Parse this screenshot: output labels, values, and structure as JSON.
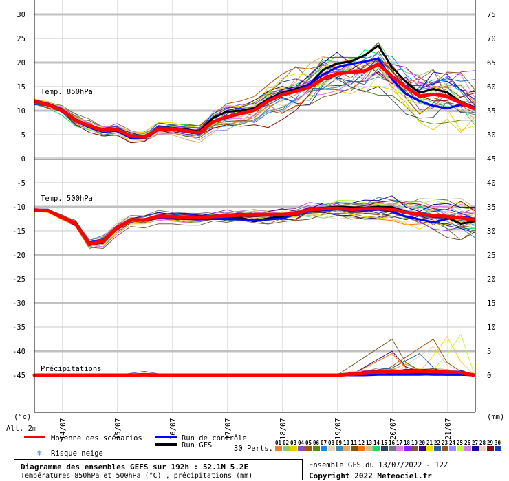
{
  "chart_data": {
    "type": "line",
    "title": "Diagramme des ensembles GEFS sur 192h : 52.1N 5.2E",
    "subtitle": "Températures 850hPa et 500hPa (°C) , précipitations (mm)",
    "run_info": "Ensemble GFS du 13/07/2022 - 12Z",
    "copyright": "Copyright 2022 Meteociel.fr",
    "left_axis": {
      "unit": "(°c)",
      "ticks": [
        "30",
        "25",
        "20",
        "15",
        "10",
        "5",
        "0",
        "-5",
        "-10",
        "-15",
        "-20",
        "-25",
        "-30",
        "-35",
        "-40",
        "-45"
      ],
      "range": [
        -45,
        30
      ]
    },
    "right_axis": {
      "unit": "(mm)",
      "ticks": [
        "75",
        "70",
        "65",
        "60",
        "55",
        "50",
        "45",
        "40",
        "35",
        "30",
        "25",
        "20",
        "15",
        "10",
        "5",
        "0"
      ]
    },
    "altitude_label": "Alt. 2m",
    "x_dates": [
      "14/07",
      "15/07",
      "16/07",
      "17/07",
      "18/07",
      "19/07",
      "20/07",
      "21/07"
    ],
    "time_step_hours": 6,
    "panel_labels": {
      "t850": "Temp. 850hPa",
      "t500": "Temp. 500hPa",
      "precip": "Précipitations"
    },
    "t850": {
      "mean": [
        11.9,
        11.2,
        10.1,
        8.0,
        6.8,
        5.9,
        6.1,
        4.7,
        4.5,
        6.2,
        6.2,
        5.8,
        5.4,
        7.7,
        8.7,
        9.4,
        10.1,
        12.0,
        13.3,
        14.0,
        14.9,
        16.6,
        17.7,
        18.0,
        18.2,
        19.7,
        17.1,
        14.9,
        13.0,
        13.4,
        13.0,
        11.6,
        10.4
      ],
      "control": [
        12.0,
        11.3,
        10.0,
        7.8,
        6.5,
        5.6,
        5.8,
        4.3,
        4.2,
        6.0,
        6.0,
        5.6,
        5.2,
        7.6,
        8.8,
        9.6,
        10.3,
        12.3,
        13.5,
        14.2,
        15.5,
        17.5,
        19.0,
        19.7,
        20.2,
        20.8,
        16.5,
        13.5,
        12.0,
        11.0,
        10.5,
        11.2,
        10.8
      ],
      "gfs": [
        12.1,
        11.4,
        10.3,
        8.2,
        6.9,
        6.0,
        6.2,
        4.8,
        4.6,
        6.4,
        6.4,
        6.1,
        5.7,
        8.5,
        9.8,
        10.0,
        10.5,
        12.5,
        13.7,
        14.5,
        15.5,
        18.5,
        19.8,
        20.2,
        21.5,
        23.5,
        19.0,
        16.0,
        13.7,
        14.5,
        13.8,
        11.8,
        10.7
      ],
      "spread": [
        0.4,
        0.5,
        0.6,
        0.8,
        0.9,
        0.9,
        0.9,
        0.8,
        0.8,
        0.8,
        0.9,
        1.0,
        1.1,
        1.3,
        1.5,
        1.6,
        1.8,
        2.2,
        2.5,
        2.6,
        2.7,
        2.8,
        2.8,
        2.9,
        3.0,
        3.0,
        3.0,
        3.2,
        3.3,
        3.4,
        3.5,
        3.6,
        3.6
      ]
    },
    "t500": {
      "mean": [
        -10.7,
        -10.8,
        -12.2,
        -13.4,
        -17.7,
        -17.2,
        -14.4,
        -12.7,
        -12.7,
        -12.0,
        -12.0,
        -12.2,
        -12.2,
        -12.0,
        -11.9,
        -11.7,
        -11.6,
        -11.6,
        -11.6,
        -11.4,
        -10.6,
        -10.4,
        -10.3,
        -10.5,
        -10.4,
        -10.4,
        -10.5,
        -11.2,
        -11.5,
        -11.8,
        -12.0,
        -12.3,
        -12.7
      ],
      "control": [
        -10.6,
        -10.7,
        -12.1,
        -13.3,
        -17.5,
        -17.0,
        -14.2,
        -12.8,
        -12.8,
        -12.3,
        -12.4,
        -12.5,
        -12.6,
        -12.5,
        -12.5,
        -12.6,
        -12.8,
        -12.6,
        -12.4,
        -11.6,
        -10.9,
        -10.7,
        -10.5,
        -10.7,
        -10.8,
        -10.6,
        -11.0,
        -12.0,
        -12.6,
        -13.2,
        -12.5,
        -12.0,
        -12.5
      ],
      "gfs": [
        -10.8,
        -10.9,
        -12.3,
        -13.5,
        -17.9,
        -17.4,
        -14.6,
        -12.8,
        -12.6,
        -12.1,
        -12.1,
        -12.4,
        -12.4,
        -12.2,
        -12.1,
        -12.3,
        -13.0,
        -12.4,
        -12.0,
        -11.3,
        -10.4,
        -10.2,
        -10.0,
        -10.1,
        -10.2,
        -10.0,
        -10.1,
        -11.0,
        -11.5,
        -12.0,
        -12.2,
        -13.5,
        -13.0
      ],
      "spread": [
        0.3,
        0.3,
        0.4,
        0.5,
        0.7,
        0.8,
        0.7,
        0.6,
        0.6,
        0.6,
        0.6,
        0.7,
        0.7,
        0.7,
        0.8,
        0.8,
        0.9,
        0.9,
        1.0,
        1.0,
        1.0,
        1.0,
        1.1,
        1.1,
        1.2,
        1.3,
        1.4,
        1.6,
        1.8,
        1.9,
        2.0,
        2.1,
        2.2
      ]
    },
    "precip": {
      "mean": [
        0,
        0,
        0,
        0,
        0,
        0,
        0,
        0,
        0.1,
        0,
        0,
        0,
        0,
        0,
        0,
        0,
        0,
        0,
        0,
        0,
        0,
        0,
        0,
        0.2,
        0.4,
        0.6,
        0.7,
        0.7,
        0.8,
        0.8,
        0.6,
        0.5,
        0
      ],
      "control": [
        0,
        0,
        0,
        0,
        0,
        0,
        0,
        0,
        0,
        0,
        0,
        0,
        0,
        0,
        0,
        0,
        0,
        0,
        0,
        0,
        0,
        0,
        0,
        0,
        0,
        0.1,
        0.1,
        0.1,
        0.1,
        0.2,
        0.1,
        0.1,
        0
      ],
      "gfs": [
        0,
        0,
        0,
        0,
        0,
        0,
        0,
        0,
        0,
        0,
        0,
        0,
        0,
        0,
        0,
        0,
        0,
        0,
        0,
        0,
        0,
        0,
        0,
        0,
        0.1,
        0.2,
        0.3,
        0.2,
        0.2,
        0.1,
        0.1,
        0.1,
        0
      ],
      "member_peaks": [
        {
          "member": 11,
          "step": 26,
          "value": 7.5,
          "rise_from": 23
        },
        {
          "member": 20,
          "step": 26,
          "value": 5.0,
          "rise_from": 24
        },
        {
          "member": 12,
          "step": 26,
          "value": 4.5,
          "rise_from": 24
        },
        {
          "member": 5,
          "step": 29,
          "value": 7.5,
          "rise_from": 26
        },
        {
          "member": 8,
          "step": 29,
          "value": 6.0,
          "rise_from": 27
        },
        {
          "member": 22,
          "step": 28,
          "value": 4.5,
          "rise_from": 26
        },
        {
          "member": 21,
          "step": 30,
          "value": 8.0,
          "rise_from": 29
        },
        {
          "member": 25,
          "step": 31,
          "value": 8.5,
          "rise_from": 30
        },
        {
          "member": 1,
          "step": 27,
          "value": 2.3,
          "rise_from": 26
        },
        {
          "member": 16,
          "step": 25,
          "value": 1.5,
          "rise_from": 24
        },
        {
          "member": 4,
          "step": 8,
          "value": 0.8,
          "rise_from": 7
        }
      ]
    }
  },
  "legend": {
    "mean_label": "Moyenne des scénarios",
    "control_label": "Run de contrôle",
    "gfs_label": "Run GFS",
    "snow_label": "Risque neige",
    "perts_label": "30 Perts.",
    "colors": {
      "mean": "#ff0000",
      "control": "#0000ff",
      "gfs": "#000000"
    },
    "members": [
      {
        "id": "01",
        "color": "#e88030"
      },
      {
        "id": "02",
        "color": "#8cc878"
      },
      {
        "id": "03",
        "color": "#f0c800"
      },
      {
        "id": "04",
        "color": "#8c50b4"
      },
      {
        "id": "05",
        "color": "#b4500a"
      },
      {
        "id": "06",
        "color": "#5a8c14"
      },
      {
        "id": "07",
        "color": "#0a8cff"
      },
      {
        "id": "08",
        "color": "#e6d2b4"
      },
      {
        "id": "09",
        "color": "#3c8cb4"
      },
      {
        "id": "10",
        "color": "#e6aa5a"
      },
      {
        "id": "11",
        "color": "#6e5a28"
      },
      {
        "id": "12",
        "color": "#ff6e14"
      },
      {
        "id": "13",
        "color": "#d2be78"
      },
      {
        "id": "14",
        "color": "#14dc64"
      },
      {
        "id": "15",
        "color": "#284664"
      },
      {
        "id": "16",
        "color": "#6e7882"
      },
      {
        "id": "17",
        "color": "#e678f0"
      },
      {
        "id": "18",
        "color": "#8c28ff"
      },
      {
        "id": "19",
        "color": "#825a32"
      },
      {
        "id": "20",
        "color": "#3c0a78"
      },
      {
        "id": "21",
        "color": "#f0dc00"
      },
      {
        "id": "22",
        "color": "#2864a0"
      },
      {
        "id": "23",
        "color": "#8c5a28"
      },
      {
        "id": "24",
        "color": "#a08cf0"
      },
      {
        "id": "25",
        "color": "#b4ff3c"
      },
      {
        "id": "26",
        "color": "#dc78dc"
      },
      {
        "id": "27",
        "color": "#1e00a0"
      },
      {
        "id": "28",
        "color": "#e6d2b4"
      },
      {
        "id": "29",
        "color": "#8c0a0a"
      },
      {
        "id": "30",
        "color": "#0a3cc8"
      }
    ]
  }
}
